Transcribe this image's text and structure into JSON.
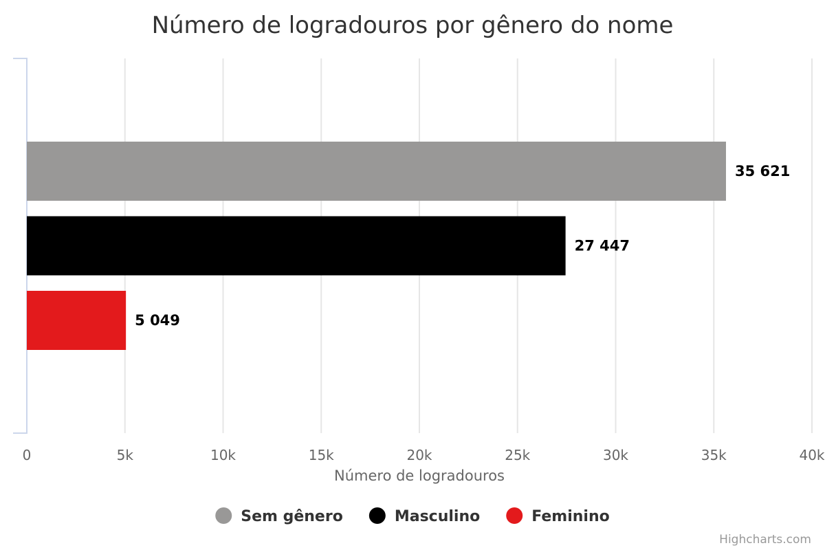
{
  "chart_data": {
    "type": "bar",
    "orientation": "horizontal",
    "title": "Número de logradouros por gênero do nome",
    "xlabel": "Número de logradouros",
    "xlim": [
      0,
      40000
    ],
    "xticks": [
      0,
      5000,
      10000,
      15000,
      20000,
      25000,
      30000,
      35000,
      40000
    ],
    "xtick_labels": [
      "0",
      "5k",
      "10k",
      "15k",
      "20k",
      "25k",
      "30k",
      "35k",
      "40k"
    ],
    "grid": true,
    "legend_position": "bottom",
    "series": [
      {
        "name": "Sem gênero",
        "value": 35621,
        "label": "35 621",
        "color": "#999897"
      },
      {
        "name": "Masculino",
        "value": 27447,
        "label": "27 447",
        "color": "#000000"
      },
      {
        "name": "Feminino",
        "value": 5049,
        "label": "5 049",
        "color": "#e31a1c"
      }
    ]
  },
  "credits": "Highcharts.com"
}
